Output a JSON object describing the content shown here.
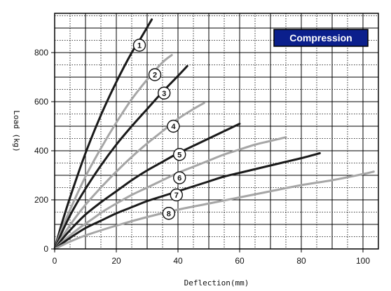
{
  "chart_data": {
    "type": "line",
    "title": "",
    "badge": "Compression",
    "xlabel": "Deflection(mm)",
    "ylabel": "Load (kg)",
    "xlim": [
      0,
      105
    ],
    "ylim": [
      0,
      960
    ],
    "xticks": [
      0,
      20,
      40,
      60,
      80,
      100
    ],
    "yticks": [
      0,
      200,
      400,
      600,
      800
    ],
    "grid": true,
    "colors": {
      "dark": "#1a1a1a",
      "light": "#a6a6a6",
      "badge_bg": "#0b1f8c",
      "badge_border": "#000000"
    },
    "series": [
      {
        "name": "1",
        "color": "dark",
        "label_at": [
          27.5,
          830
        ],
        "x": [
          0,
          2,
          5,
          10,
          15,
          20,
          25,
          28,
          31.5
        ],
        "y": [
          0,
          90,
          210,
          390,
          545,
          680,
          800,
          860,
          935
        ]
      },
      {
        "name": "2",
        "color": "light",
        "label_at": [
          32.5,
          710
        ],
        "x": [
          0,
          2,
          5,
          10,
          15,
          20,
          25,
          30,
          35,
          38
        ],
        "y": [
          0,
          70,
          160,
          295,
          410,
          515,
          610,
          690,
          760,
          790
        ]
      },
      {
        "name": "3",
        "color": "dark",
        "label_at": [
          35.5,
          635
        ],
        "x": [
          0,
          3,
          6,
          10,
          15,
          20,
          25,
          30,
          35,
          40,
          43
        ],
        "y": [
          0,
          85,
          160,
          245,
          340,
          425,
          500,
          570,
          640,
          705,
          745
        ]
      },
      {
        "name": "4",
        "color": "light",
        "label_at": [
          38.5,
          500
        ],
        "x": [
          0,
          3,
          6,
          10,
          15,
          20,
          25,
          30,
          35,
          40,
          45,
          48.5
        ],
        "y": [
          0,
          60,
          115,
          180,
          250,
          315,
          375,
          430,
          480,
          530,
          570,
          595
        ]
      },
      {
        "name": "5",
        "color": "dark",
        "label_at": [
          40.5,
          385
        ],
        "x": [
          0,
          3,
          6,
          10,
          15,
          20,
          25,
          30,
          35,
          40,
          45,
          50,
          55,
          60
        ],
        "y": [
          0,
          48,
          90,
          140,
          190,
          235,
          280,
          320,
          355,
          390,
          420,
          450,
          480,
          510
        ]
      },
      {
        "name": "6",
        "color": "light",
        "label_at": [
          40.5,
          290
        ],
        "x": [
          0,
          4,
          8,
          12,
          16,
          20,
          25,
          30,
          35,
          40,
          45,
          50,
          55,
          60,
          65,
          70,
          75
        ],
        "y": [
          0,
          45,
          85,
          120,
          155,
          185,
          220,
          250,
          280,
          310,
          335,
          360,
          385,
          405,
          425,
          440,
          455
        ]
      },
      {
        "name": "7",
        "color": "dark",
        "label_at": [
          39.5,
          220
        ],
        "x": [
          0,
          5,
          10,
          15,
          20,
          25,
          30,
          35,
          40,
          45,
          50,
          55,
          60,
          65,
          70,
          75,
          80,
          86
        ],
        "y": [
          0,
          45,
          85,
          115,
          145,
          170,
          195,
          215,
          235,
          255,
          275,
          295,
          310,
          325,
          340,
          355,
          370,
          390
        ]
      },
      {
        "name": "8",
        "color": "light",
        "label_at": [
          37,
          145
        ],
        "x": [
          0,
          5,
          10,
          20,
          30,
          40,
          50,
          60,
          70,
          80,
          90,
          100,
          103.5
        ],
        "y": [
          0,
          30,
          55,
          95,
          130,
          160,
          185,
          210,
          235,
          260,
          280,
          305,
          315
        ]
      }
    ]
  }
}
